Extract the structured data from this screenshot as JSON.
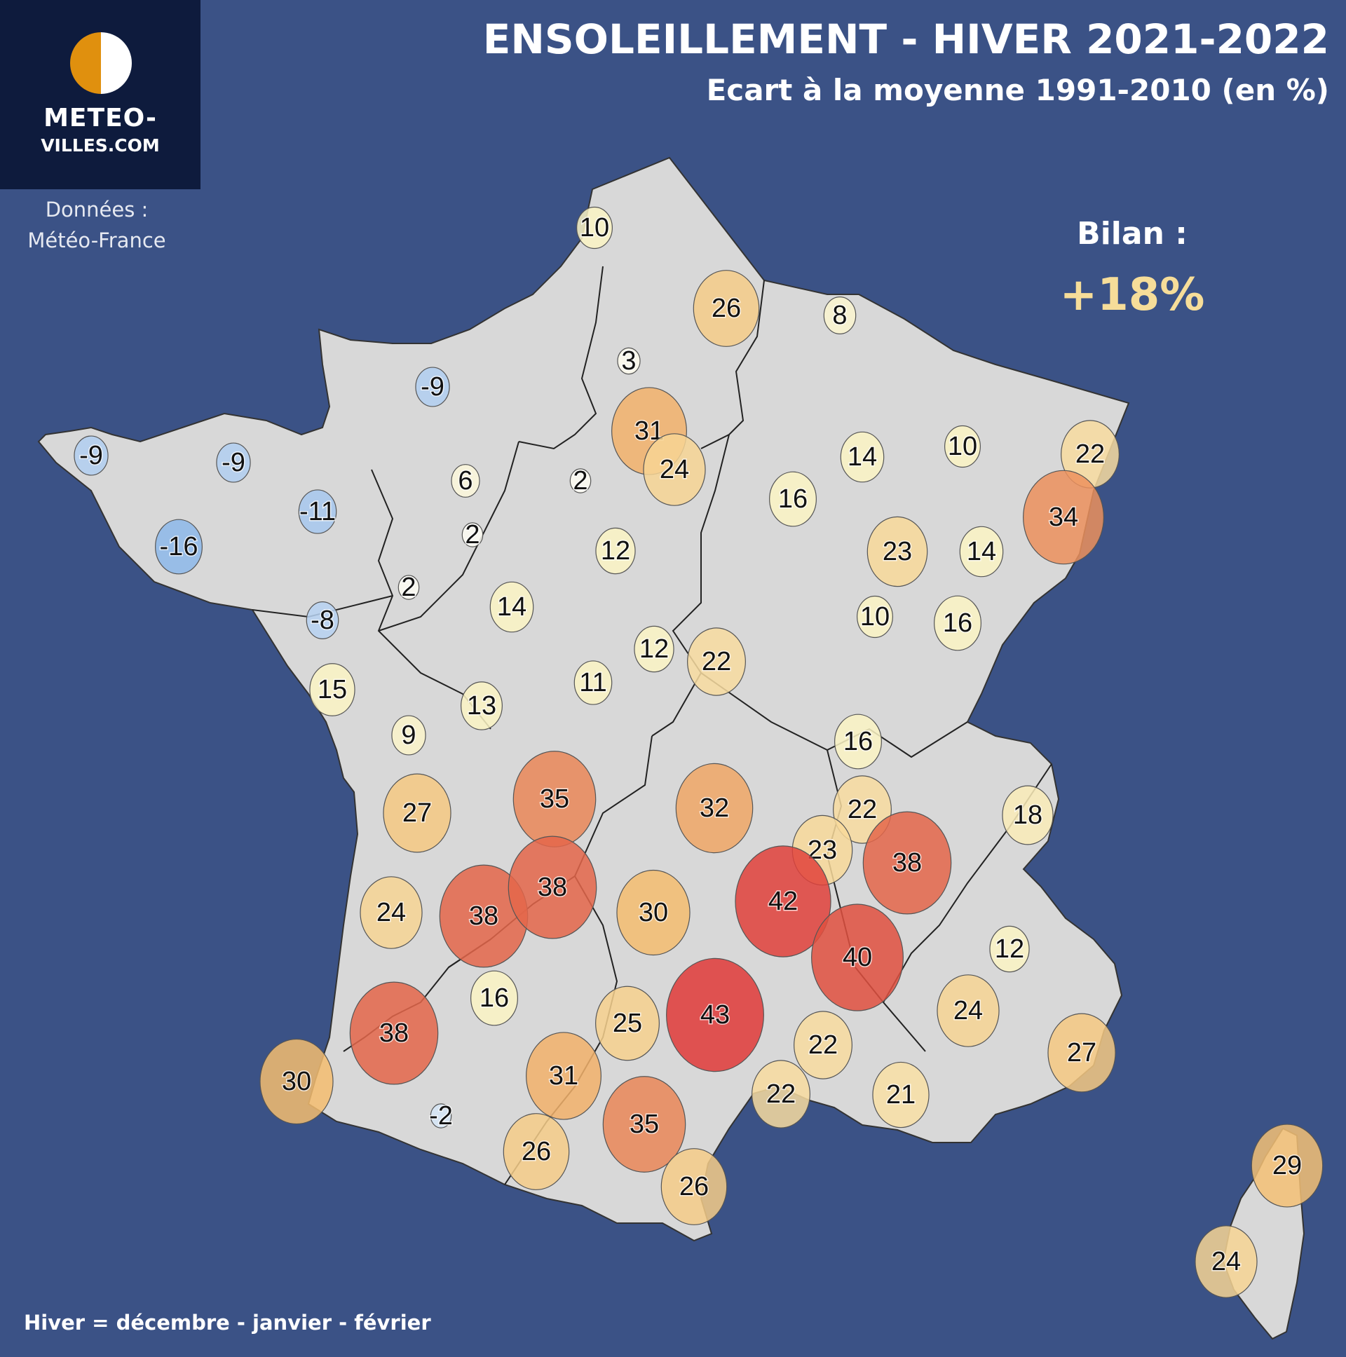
{
  "header": {
    "title": "ENSOLEILLEMENT - HIVER 2021-2022",
    "subtitle": "Ecart à la moyenne 1991-2010 (en %)"
  },
  "logo": {
    "line1": "METEO-",
    "line2": "VILLES.COM"
  },
  "source": {
    "label": "Données :",
    "value": "Météo-France"
  },
  "summary": {
    "label": "Bilan :",
    "value": "+18%"
  },
  "footer": {
    "note": "Hiver = décembre - janvier - février"
  },
  "colors": {
    "ocean": "#3b5286",
    "land": "#d8d8d8",
    "logo_bg": "#0e1b3d",
    "bilan": "#f6dd99",
    "scale_negative": "#8db8ea",
    "scale_low": "#fbf4c4",
    "scale_mid": "#f4bd70",
    "scale_high": "#e05040",
    "scale_max": "#e03a38"
  },
  "stations": [
    {
      "value": 10
    },
    {
      "value": 26
    },
    {
      "value": 8
    },
    {
      "value": -9
    },
    {
      "value": 3
    },
    {
      "value": 31
    },
    {
      "value": 24
    },
    {
      "value": -9
    },
    {
      "value": -9
    },
    {
      "value": 6
    },
    {
      "value": 2
    },
    {
      "value": -11
    },
    {
      "value": 14
    },
    {
      "value": 10
    },
    {
      "value": 22
    },
    {
      "value": 16
    },
    {
      "value": 34
    },
    {
      "value": -16
    },
    {
      "value": 2
    },
    {
      "value": 12
    },
    {
      "value": 23
    },
    {
      "value": 14
    },
    {
      "value": 2
    },
    {
      "value": 14
    },
    {
      "value": -8
    },
    {
      "value": 10
    },
    {
      "value": 16
    },
    {
      "value": 12
    },
    {
      "value": 22
    },
    {
      "value": 15
    },
    {
      "value": 11
    },
    {
      "value": 13
    },
    {
      "value": 9
    },
    {
      "value": 16
    },
    {
      "value": 35
    },
    {
      "value": 32
    },
    {
      "value": 27
    },
    {
      "value": 22
    },
    {
      "value": 18
    },
    {
      "value": 23
    },
    {
      "value": 38
    },
    {
      "value": 38
    },
    {
      "value": 38
    },
    {
      "value": 24
    },
    {
      "value": 30
    },
    {
      "value": 42
    },
    {
      "value": 40
    },
    {
      "value": 12
    },
    {
      "value": 16
    },
    {
      "value": 43
    },
    {
      "value": 24
    },
    {
      "value": 38
    },
    {
      "value": 25
    },
    {
      "value": 27
    },
    {
      "value": 22
    },
    {
      "value": 31
    },
    {
      "value": 22
    },
    {
      "value": 30
    },
    {
      "value": 21
    },
    {
      "value": -2
    },
    {
      "value": 35
    },
    {
      "value": 26
    },
    {
      "value": 26
    },
    {
      "value": 29
    },
    {
      "value": 24
    }
  ]
}
